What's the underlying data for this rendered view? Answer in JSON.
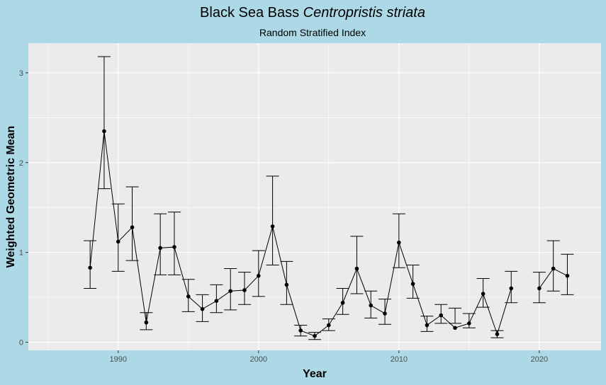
{
  "chart_data": {
    "type": "line",
    "title_main": "Black Sea Bass",
    "title_italic": "Centropristis striata",
    "subtitle": "Random Stratified Index",
    "xlabel": "Year",
    "ylabel": "Weighted Geometric Mean",
    "xlim": [
      1983.6,
      2024.4
    ],
    "ylim": [
      -0.09,
      3.33
    ],
    "x_ticks": [
      1990,
      2000,
      2010,
      2020
    ],
    "y_ticks": [
      0,
      1,
      2,
      3
    ],
    "grid": true,
    "background": "#add8e6",
    "panel_color": "#ebebeb",
    "segments": [
      [
        {
          "x": 1988,
          "y": 0.83,
          "lo": 0.6,
          "hi": 1.13
        },
        {
          "x": 1989,
          "y": 2.35,
          "lo": 1.71,
          "hi": 3.18
        },
        {
          "x": 1990,
          "y": 1.12,
          "lo": 0.79,
          "hi": 1.54
        },
        {
          "x": 1991,
          "y": 1.28,
          "lo": 0.91,
          "hi": 1.73
        },
        {
          "x": 1992,
          "y": 0.22,
          "lo": 0.14,
          "hi": 0.33
        },
        {
          "x": 1993,
          "y": 1.05,
          "lo": 0.75,
          "hi": 1.43
        },
        {
          "x": 1994,
          "y": 1.06,
          "lo": 0.75,
          "hi": 1.45
        },
        {
          "x": 1995,
          "y": 0.51,
          "lo": 0.34,
          "hi": 0.7
        },
        {
          "x": 1996,
          "y": 0.37,
          "lo": 0.23,
          "hi": 0.53
        },
        {
          "x": 1997,
          "y": 0.46,
          "lo": 0.33,
          "hi": 0.64
        },
        {
          "x": 1998,
          "y": 0.57,
          "lo": 0.36,
          "hi": 0.82
        },
        {
          "x": 1999,
          "y": 0.58,
          "lo": 0.42,
          "hi": 0.78
        },
        {
          "x": 2000,
          "y": 0.74,
          "lo": 0.51,
          "hi": 1.02
        },
        {
          "x": 2001,
          "y": 1.29,
          "lo": 0.86,
          "hi": 1.85
        },
        {
          "x": 2002,
          "y": 0.64,
          "lo": 0.42,
          "hi": 0.9
        },
        {
          "x": 2003,
          "y": 0.13,
          "lo": 0.07,
          "hi": 0.19
        },
        {
          "x": 2004,
          "y": 0.07,
          "lo": 0.03,
          "hi": 0.11
        },
        {
          "x": 2005,
          "y": 0.19,
          "lo": 0.13,
          "hi": 0.26
        },
        {
          "x": 2006,
          "y": 0.44,
          "lo": 0.31,
          "hi": 0.6
        },
        {
          "x": 2007,
          "y": 0.82,
          "lo": 0.54,
          "hi": 1.18
        },
        {
          "x": 2008,
          "y": 0.41,
          "lo": 0.27,
          "hi": 0.57
        },
        {
          "x": 2009,
          "y": 0.32,
          "lo": 0.2,
          "hi": 0.48
        },
        {
          "x": 2010,
          "y": 1.11,
          "lo": 0.83,
          "hi": 1.43
        },
        {
          "x": 2011,
          "y": 0.65,
          "lo": 0.49,
          "hi": 0.86
        },
        {
          "x": 2012,
          "y": 0.19,
          "lo": 0.12,
          "hi": 0.29
        },
        {
          "x": 2013,
          "y": 0.3,
          "lo": 0.21,
          "hi": 0.42
        },
        {
          "x": 2014,
          "y": 0.16,
          "lo": 0.21,
          "hi": 0.38
        },
        {
          "x": 2015,
          "y": 0.21,
          "lo": 0.16,
          "hi": 0.32
        },
        {
          "x": 2016,
          "y": 0.54,
          "lo": 0.39,
          "hi": 0.71
        },
        {
          "x": 2017,
          "y": 0.09,
          "lo": 0.05,
          "hi": 0.13
        },
        {
          "x": 2018,
          "y": 0.6,
          "lo": 0.44,
          "hi": 0.79
        }
      ],
      [
        {
          "x": 2020,
          "y": 0.6,
          "lo": 0.44,
          "hi": 0.78
        },
        {
          "x": 2021,
          "y": 0.82,
          "lo": 0.57,
          "hi": 1.13
        },
        {
          "x": 2022,
          "y": 0.74,
          "lo": 0.53,
          "hi": 0.98
        }
      ]
    ]
  }
}
